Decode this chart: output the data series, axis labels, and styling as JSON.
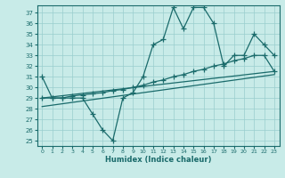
{
  "xlabel": "Humidex (Indice chaleur)",
  "xlim": [
    -0.5,
    23.5
  ],
  "ylim": [
    24.5,
    37.7
  ],
  "yticks": [
    25,
    26,
    27,
    28,
    29,
    30,
    31,
    32,
    33,
    34,
    35,
    36,
    37
  ],
  "xticks": [
    0,
    1,
    2,
    3,
    4,
    5,
    6,
    7,
    8,
    9,
    10,
    11,
    12,
    13,
    14,
    15,
    16,
    17,
    18,
    19,
    20,
    21,
    22,
    23
  ],
  "bg_color": "#c8ebe8",
  "line_color": "#1a6b6b",
  "line1_x": [
    0,
    1,
    2,
    3,
    4,
    5,
    6,
    7,
    8,
    9,
    10,
    11,
    12,
    13,
    14,
    15,
    16,
    17,
    18,
    19,
    20,
    21,
    22,
    23
  ],
  "line1_y": [
    31,
    29,
    29,
    29,
    29,
    27.5,
    26,
    25,
    29,
    29.5,
    31,
    34,
    34.5,
    37.5,
    35.5,
    37.5,
    37.5,
    36,
    32,
    33,
    33,
    35,
    34,
    33
  ],
  "line2_x": [
    0,
    1,
    2,
    3,
    4,
    5,
    6,
    7,
    8,
    9,
    10,
    11,
    12,
    13,
    14,
    15,
    16,
    17,
    18,
    19,
    20,
    21,
    22,
    23
  ],
  "line2_y": [
    29,
    29,
    29,
    29.2,
    29.3,
    29.4,
    29.5,
    29.7,
    29.8,
    30.0,
    30.2,
    30.5,
    30.7,
    31.0,
    31.2,
    31.5,
    31.7,
    32.0,
    32.2,
    32.5,
    32.7,
    33.0,
    33.0,
    31.5
  ],
  "line3_x": [
    0,
    23
  ],
  "line3_y": [
    29.0,
    31.5
  ],
  "line4_x": [
    0,
    23
  ],
  "line4_y": [
    28.2,
    31.2
  ]
}
